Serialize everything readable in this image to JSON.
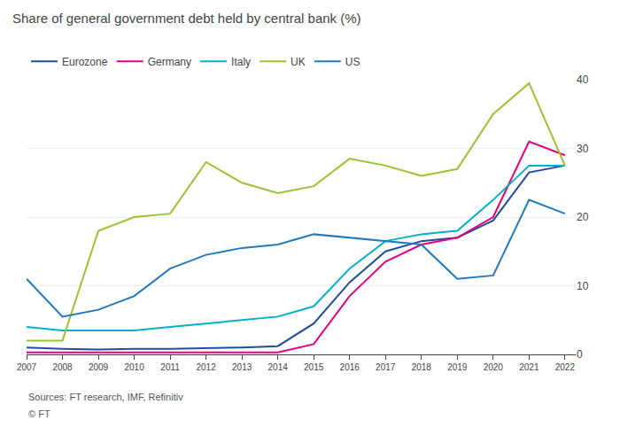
{
  "chart_data": {
    "type": "line",
    "title": "Share of general government debt held by central bank (%)",
    "annotations": [
      "Sources: FT research, IMF, Refinitiv",
      "© FT"
    ],
    "x": [
      2007,
      2008,
      2009,
      2010,
      2011,
      2012,
      2013,
      2014,
      2015,
      2016,
      2017,
      2018,
      2019,
      2020,
      2021,
      2022
    ],
    "series": [
      {
        "name": "Eurozone",
        "color": "#1f4e96",
        "values": [
          1.0,
          0.8,
          0.7,
          0.8,
          0.8,
          0.9,
          1.0,
          1.2,
          4.5,
          10.5,
          15.0,
          16.5,
          17.0,
          19.5,
          26.5,
          27.5
        ]
      },
      {
        "name": "Germany",
        "color": "#e6007e",
        "values": [
          0.3,
          0.3,
          0.3,
          0.3,
          0.3,
          0.3,
          0.3,
          0.3,
          1.5,
          8.5,
          13.5,
          16.0,
          17.0,
          20.0,
          31.0,
          29.0
        ]
      },
      {
        "name": "Italy",
        "color": "#00b0cc",
        "values": [
          4.0,
          3.5,
          3.5,
          3.5,
          4.0,
          4.5,
          5.0,
          5.5,
          7.0,
          12.5,
          16.5,
          17.5,
          18.0,
          22.5,
          27.5,
          27.5
        ]
      },
      {
        "name": "UK",
        "color": "#9bc230",
        "values": [
          2.0,
          2.0,
          18.0,
          20.0,
          20.5,
          28.0,
          25.0,
          23.5,
          24.5,
          28.5,
          27.5,
          26.0,
          27.0,
          35.0,
          39.5,
          27.5
        ]
      },
      {
        "name": "US",
        "color": "#1f7abf",
        "values": [
          11.0,
          5.5,
          6.5,
          8.5,
          12.5,
          14.5,
          15.5,
          16.0,
          17.5,
          17.0,
          16.5,
          16.0,
          11.0,
          11.5,
          22.5,
          20.5
        ]
      }
    ],
    "xlim": [
      2007,
      2022.3
    ],
    "xticks": [
      2007,
      2008,
      2009,
      2010,
      2011,
      2012,
      2013,
      2014,
      2015,
      2016,
      2017,
      2018,
      2019,
      2020,
      2021,
      2022
    ],
    "ylim": [
      0,
      40
    ],
    "yticks": [
      0,
      10,
      20,
      30,
      40
    ],
    "grid": true,
    "legend": "upper left"
  }
}
